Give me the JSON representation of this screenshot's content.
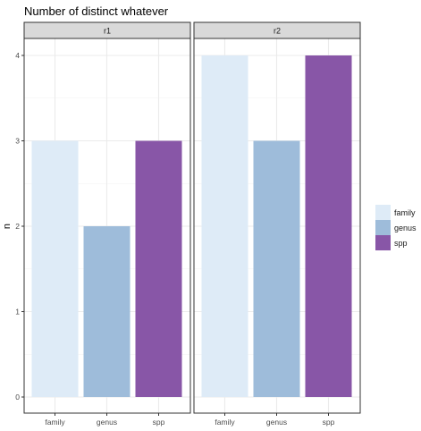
{
  "chart_data": {
    "type": "bar",
    "title": "Number of distinct whatever",
    "ylabel": "n",
    "xlabel": "",
    "categories": [
      "family",
      "genus",
      "spp"
    ],
    "ylim": [
      0,
      4
    ],
    "yticks": [
      0,
      1,
      2,
      3,
      4
    ],
    "grid": true,
    "legend_placement": "right",
    "colors": {
      "family": "#deebf7",
      "genus": "#9ebcda",
      "spp": "#8856a7"
    },
    "panels": [
      {
        "label": "r1",
        "values": [
          3,
          2,
          3
        ]
      },
      {
        "label": "r2",
        "values": [
          4,
          3,
          4
        ]
      }
    ],
    "legend": [
      "family",
      "genus",
      "spp"
    ]
  }
}
